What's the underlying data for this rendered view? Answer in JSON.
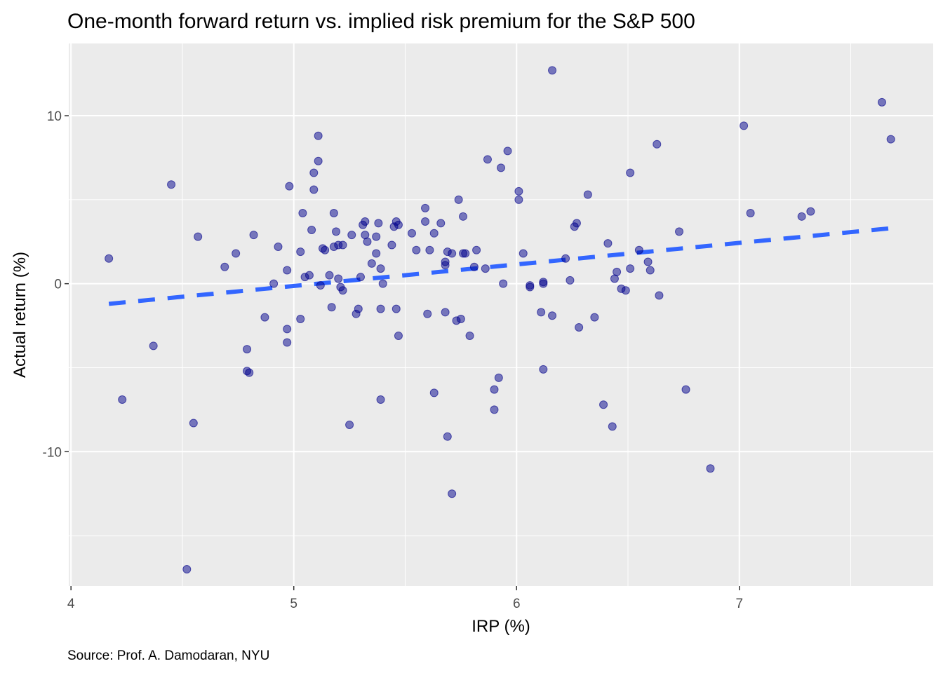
{
  "chart_data": {
    "type": "scatter",
    "title": "One-month forward return vs. implied risk premium for the S&P 500",
    "xlabel": "IRP (%)",
    "ylabel": "Actual return (%)",
    "caption": "Source: Prof. A. Damodaran, NYU",
    "xlim": [
      3.99,
      7.87
    ],
    "ylim": [
      -18.0,
      14.3
    ],
    "x_ticks": [
      4,
      5,
      6,
      7
    ],
    "x_tick_labels": [
      "4",
      "5",
      "6",
      "7"
    ],
    "y_ticks": [
      -10,
      0,
      10
    ],
    "y_tick_labels": [
      "-10",
      "0",
      "10"
    ],
    "grid": true,
    "legend": "none",
    "colors": {
      "panel": "#ebebeb",
      "grid": "#ffffff",
      "point_fill": "#00008b",
      "point_fill_opacity": 0.5,
      "point_stroke": "#00008b",
      "trend_line": "#3366ff"
    },
    "trend_line": {
      "type": "linear",
      "dashed": true,
      "x": [
        4.17,
        7.68
      ],
      "y": [
        -1.2,
        3.3
      ]
    },
    "points": [
      {
        "x": 4.17,
        "y": 1.5
      },
      {
        "x": 4.23,
        "y": -6.9
      },
      {
        "x": 4.37,
        "y": -3.7
      },
      {
        "x": 4.45,
        "y": 5.9
      },
      {
        "x": 4.52,
        "y": -17.0
      },
      {
        "x": 4.55,
        "y": -8.3
      },
      {
        "x": 4.57,
        "y": 2.8
      },
      {
        "x": 4.69,
        "y": 1.0
      },
      {
        "x": 4.74,
        "y": 1.8
      },
      {
        "x": 4.79,
        "y": -3.9
      },
      {
        "x": 4.79,
        "y": -5.2
      },
      {
        "x": 4.8,
        "y": -5.3
      },
      {
        "x": 4.82,
        "y": 2.9
      },
      {
        "x": 4.87,
        "y": -2.0
      },
      {
        "x": 4.91,
        "y": 0.0
      },
      {
        "x": 4.93,
        "y": 2.2
      },
      {
        "x": 4.97,
        "y": -2.7
      },
      {
        "x": 4.97,
        "y": -3.5
      },
      {
        "x": 4.97,
        "y": 0.8
      },
      {
        "x": 4.98,
        "y": 5.8
      },
      {
        "x": 5.03,
        "y": 1.9
      },
      {
        "x": 5.03,
        "y": -2.1
      },
      {
        "x": 5.04,
        "y": 4.2
      },
      {
        "x": 5.05,
        "y": 0.4
      },
      {
        "x": 5.07,
        "y": 0.5
      },
      {
        "x": 5.08,
        "y": 3.2
      },
      {
        "x": 5.09,
        "y": 6.6
      },
      {
        "x": 5.09,
        "y": 5.6
      },
      {
        "x": 5.11,
        "y": 7.3
      },
      {
        "x": 5.11,
        "y": 8.8
      },
      {
        "x": 5.12,
        "y": -0.1
      },
      {
        "x": 5.13,
        "y": 2.1
      },
      {
        "x": 5.14,
        "y": 2.0
      },
      {
        "x": 5.16,
        "y": 0.5
      },
      {
        "x": 5.17,
        "y": -1.4
      },
      {
        "x": 5.18,
        "y": 2.2
      },
      {
        "x": 5.18,
        "y": 4.2
      },
      {
        "x": 5.19,
        "y": 3.1
      },
      {
        "x": 5.2,
        "y": 2.3
      },
      {
        "x": 5.2,
        "y": 0.3
      },
      {
        "x": 5.21,
        "y": -0.2
      },
      {
        "x": 5.22,
        "y": -0.4
      },
      {
        "x": 5.22,
        "y": 2.3
      },
      {
        "x": 5.25,
        "y": -8.4
      },
      {
        "x": 5.26,
        "y": 2.9
      },
      {
        "x": 5.28,
        "y": -1.8
      },
      {
        "x": 5.29,
        "y": -1.5
      },
      {
        "x": 5.3,
        "y": 0.4
      },
      {
        "x": 5.31,
        "y": 3.5
      },
      {
        "x": 5.32,
        "y": 3.7
      },
      {
        "x": 5.32,
        "y": 2.9
      },
      {
        "x": 5.33,
        "y": 2.5
      },
      {
        "x": 5.35,
        "y": 1.2
      },
      {
        "x": 5.37,
        "y": 1.8
      },
      {
        "x": 5.37,
        "y": 2.8
      },
      {
        "x": 5.38,
        "y": 3.6
      },
      {
        "x": 5.39,
        "y": 0.9
      },
      {
        "x": 5.39,
        "y": -1.5
      },
      {
        "x": 5.39,
        "y": -6.9
      },
      {
        "x": 5.4,
        "y": 0.0
      },
      {
        "x": 5.44,
        "y": 2.3
      },
      {
        "x": 5.45,
        "y": 3.4
      },
      {
        "x": 5.46,
        "y": 3.7
      },
      {
        "x": 5.46,
        "y": -1.5
      },
      {
        "x": 5.47,
        "y": -3.1
      },
      {
        "x": 5.47,
        "y": 3.5
      },
      {
        "x": 5.53,
        "y": 3.0
      },
      {
        "x": 5.55,
        "y": 2.0
      },
      {
        "x": 5.59,
        "y": 4.5
      },
      {
        "x": 5.59,
        "y": 3.7
      },
      {
        "x": 5.6,
        "y": -1.8
      },
      {
        "x": 5.61,
        "y": 2.0
      },
      {
        "x": 5.63,
        "y": 3.0
      },
      {
        "x": 5.63,
        "y": -6.5
      },
      {
        "x": 5.66,
        "y": 3.6
      },
      {
        "x": 5.68,
        "y": 1.3
      },
      {
        "x": 5.68,
        "y": 1.1
      },
      {
        "x": 5.68,
        "y": -1.7
      },
      {
        "x": 5.69,
        "y": 1.9
      },
      {
        "x": 5.69,
        "y": -9.1
      },
      {
        "x": 5.71,
        "y": 1.8
      },
      {
        "x": 5.71,
        "y": -12.5
      },
      {
        "x": 5.73,
        "y": -2.2
      },
      {
        "x": 5.74,
        "y": 5.0
      },
      {
        "x": 5.75,
        "y": -2.1
      },
      {
        "x": 5.76,
        "y": 4.0
      },
      {
        "x": 5.76,
        "y": 1.8
      },
      {
        "x": 5.77,
        "y": 1.8
      },
      {
        "x": 5.79,
        "y": -3.1
      },
      {
        "x": 5.81,
        "y": 1.0
      },
      {
        "x": 5.82,
        "y": 2.0
      },
      {
        "x": 5.86,
        "y": 0.9
      },
      {
        "x": 5.87,
        "y": 7.4
      },
      {
        "x": 5.9,
        "y": -6.3
      },
      {
        "x": 5.9,
        "y": -7.5
      },
      {
        "x": 5.92,
        "y": -5.6
      },
      {
        "x": 5.93,
        "y": 6.9
      },
      {
        "x": 5.94,
        "y": 0.0
      },
      {
        "x": 5.96,
        "y": 7.9
      },
      {
        "x": 6.01,
        "y": 5.0
      },
      {
        "x": 6.01,
        "y": 5.5
      },
      {
        "x": 6.03,
        "y": 1.8
      },
      {
        "x": 6.06,
        "y": -0.1
      },
      {
        "x": 6.06,
        "y": -0.2
      },
      {
        "x": 6.11,
        "y": -1.7
      },
      {
        "x": 6.12,
        "y": 0.1
      },
      {
        "x": 6.12,
        "y": 0.0
      },
      {
        "x": 6.12,
        "y": -5.1
      },
      {
        "x": 6.16,
        "y": -1.9
      },
      {
        "x": 6.16,
        "y": 12.7
      },
      {
        "x": 6.22,
        "y": 1.5
      },
      {
        "x": 6.24,
        "y": 0.2
      },
      {
        "x": 6.26,
        "y": 3.4
      },
      {
        "x": 6.27,
        "y": 3.6
      },
      {
        "x": 6.28,
        "y": -2.6
      },
      {
        "x": 6.32,
        "y": 5.3
      },
      {
        "x": 6.35,
        "y": -2.0
      },
      {
        "x": 6.39,
        "y": -7.2
      },
      {
        "x": 6.41,
        "y": 2.4
      },
      {
        "x": 6.43,
        "y": -8.5
      },
      {
        "x": 6.44,
        "y": 0.3
      },
      {
        "x": 6.45,
        "y": 0.7
      },
      {
        "x": 6.47,
        "y": -0.3
      },
      {
        "x": 6.49,
        "y": -0.4
      },
      {
        "x": 6.51,
        "y": 6.6
      },
      {
        "x": 6.51,
        "y": 0.9
      },
      {
        "x": 6.55,
        "y": 2.0
      },
      {
        "x": 6.59,
        "y": 1.3
      },
      {
        "x": 6.6,
        "y": 0.8
      },
      {
        "x": 6.63,
        "y": 8.3
      },
      {
        "x": 6.64,
        "y": -0.7
      },
      {
        "x": 6.73,
        "y": 3.1
      },
      {
        "x": 6.76,
        "y": -6.3
      },
      {
        "x": 6.87,
        "y": -11.0
      },
      {
        "x": 7.02,
        "y": 9.4
      },
      {
        "x": 7.05,
        "y": 4.2
      },
      {
        "x": 7.28,
        "y": 4.0
      },
      {
        "x": 7.32,
        "y": 4.3
      },
      {
        "x": 7.64,
        "y": 10.8
      },
      {
        "x": 7.68,
        "y": 8.6
      }
    ]
  }
}
